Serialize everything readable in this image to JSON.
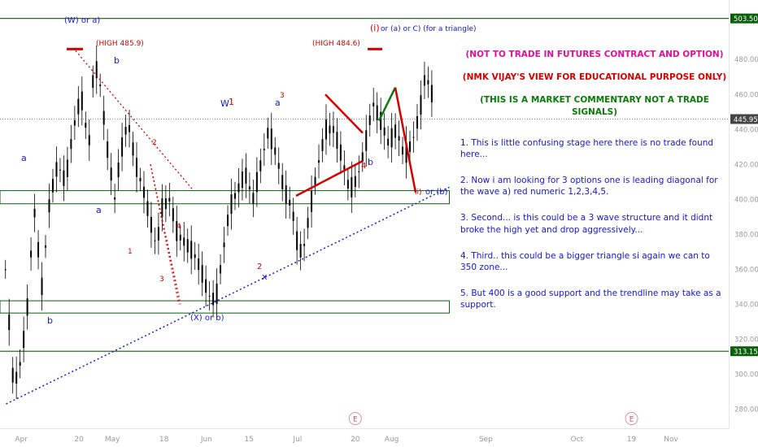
{
  "chart_data": {
    "type": "candlestick",
    "ylim": [
      270,
      508
    ],
    "xlim": [
      "Mar 25",
      "Nov 20"
    ],
    "x_ticks": [
      "Apr",
      "20",
      "May",
      "18",
      "Jun",
      "15",
      "Jul",
      "20",
      "Aug",
      "Sep",
      "Oct",
      "19",
      "Nov"
    ],
    "y_ticks": [
      280,
      300,
      320,
      340,
      360,
      380,
      400,
      420,
      440,
      460,
      480
    ],
    "price_labels": [
      {
        "value": "503.50",
        "level": 503.5
      },
      {
        "value": "445.95",
        "level": 445.95
      },
      {
        "value": "313.15",
        "level": 313.15
      }
    ],
    "horizontal_lines": [
      503.5,
      313.15
    ],
    "current_price_line": 445.95,
    "support_zones": [
      {
        "low": 397.5,
        "high": 405,
        "from": "Mar 25",
        "to": "Aug 20"
      },
      {
        "low": 335,
        "high": 342,
        "from": "Mar 25",
        "to": "Aug 20"
      }
    ],
    "trendline": {
      "from": [
        "Mar 27",
        283
      ],
      "to": [
        "Aug 20",
        407
      ]
    },
    "event_markers": [
      "E",
      "E"
    ],
    "candle_color": "#000000",
    "annotations": [
      {
        "text": "(W) or a)",
        "color": "#1515d6"
      },
      {
        "text": "(HIGH 485.9)",
        "color": "#d50000"
      },
      {
        "text": "b",
        "color": "#1515d6"
      },
      {
        "text": "a",
        "color": "#1515d6"
      },
      {
        "text": "a",
        "color": "#1515d6"
      },
      {
        "text": "b",
        "color": "#1515d6"
      },
      {
        "text": "2",
        "color": "#d50000"
      },
      {
        "text": "1",
        "color": "#d50000"
      },
      {
        "text": "3",
        "color": "#d50000"
      },
      {
        "text": "4",
        "color": "#d50000"
      },
      {
        "text": "W",
        "color": "#1515d6"
      },
      {
        "text": "1",
        "color": "#d50000"
      },
      {
        "text": "a",
        "color": "#1515d6"
      },
      {
        "text": "3",
        "color": "#d50000"
      },
      {
        "text": "2",
        "color": "#d50000"
      },
      {
        "text": "x",
        "color": "#1515d6"
      },
      {
        "text": "(X) or b)",
        "color": "#1515d6"
      },
      {
        "text": "(HIGH 484.6)",
        "color": "#d50000"
      },
      {
        "text": "(i)",
        "color": "#d50000"
      },
      {
        "text": "or (a) or C) (for a triangle)",
        "color": "#1515d6"
      },
      {
        "text": "4",
        "color": "#d50000"
      },
      {
        "text": "b",
        "color": "#1515d6"
      },
      {
        "text": "ii)",
        "color": "#d50000"
      },
      {
        "text": "or (b)",
        "color": "#1515d6"
      }
    ],
    "headers": [
      {
        "text": "(NOT TO TRADE IN FUTURES CONTRACT AND OPTION)",
        "color": "#e0109a"
      },
      {
        "text": "(NMK VIJAY'S VIEW FOR EDUCATIONAL PURPOSE ONLY)",
        "color": "#d50000"
      },
      {
        "text": "(THIS IS A MARKET COMMENTARY NOT A TRADE SIGNALS)",
        "color": "#0b7a0b"
      }
    ],
    "notes": [
      "1. This is little confusing stage here there is no trade found here...",
      "2. Now i am looking for 3 options one is leading diagonal for the wave a) red numeric 1,2,3,4,5.",
      "3. Second... is this could be a 3 wave structure and it didnt broke the high yet and drop aggressively...",
      "4. Third.. this could be a bigger triangle si again we can to 350 zone...",
      "5. But 400 is a good support and the trendline may take as a support."
    ]
  }
}
